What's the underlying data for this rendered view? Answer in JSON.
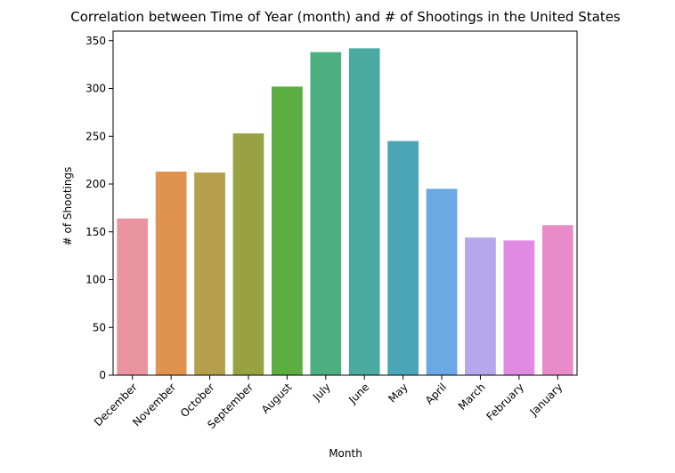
{
  "chart_data": {
    "type": "bar",
    "title": "Correlation between Time of Year (month) and # of Shootings in the United States",
    "xlabel": "Month",
    "ylabel": "# of Shootings",
    "categories": [
      "December",
      "November",
      "October",
      "September",
      "August",
      "July",
      "June",
      "May",
      "April",
      "March",
      "February",
      "January"
    ],
    "values": [
      164,
      213,
      212,
      253,
      302,
      338,
      342,
      245,
      195,
      144,
      141,
      157
    ],
    "colors": [
      "#e9949f",
      "#e0924f",
      "#b59e4c",
      "#99a243",
      "#5cae42",
      "#4daf82",
      "#4aa9a0",
      "#4ba6b7",
      "#6aa9e3",
      "#b6a6eb",
      "#e08ae3",
      "#e78cc9"
    ],
    "ylim": [
      0,
      360
    ],
    "yticks": [
      0,
      50,
      100,
      150,
      200,
      250,
      300,
      350
    ],
    "grid": false,
    "legend": "none"
  }
}
